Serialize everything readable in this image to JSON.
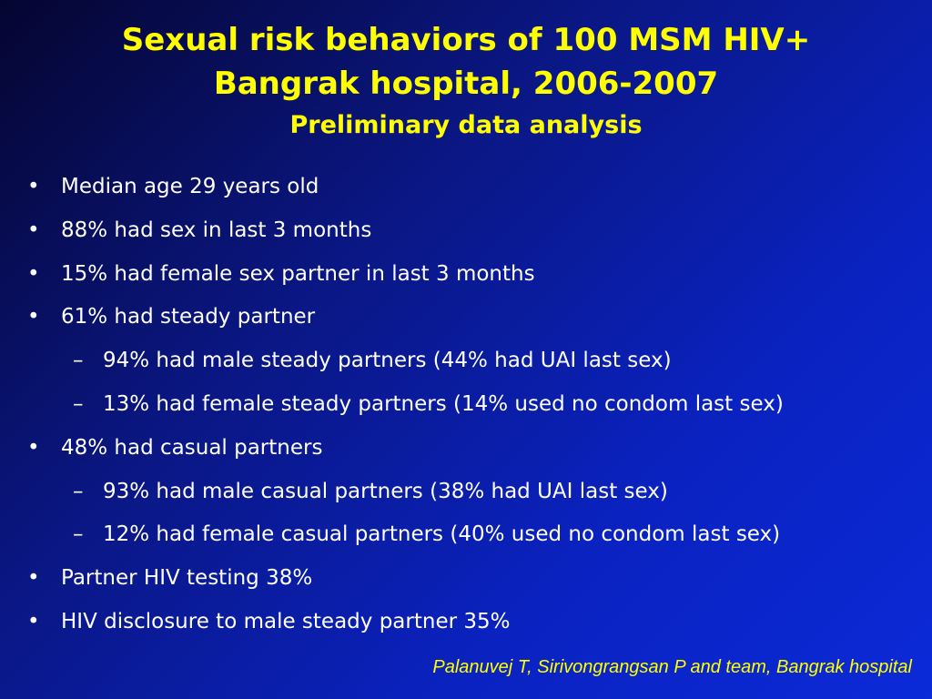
{
  "header": {
    "title": "Sexual risk behaviors of 100 MSM HIV+",
    "title_line2": "Bangrak hospital, 2006-2007",
    "subtitle": "Preliminary data analysis"
  },
  "bullets": [
    {
      "level": 1,
      "text": "Median age 29 years old"
    },
    {
      "level": 1,
      "text": "88% had sex in last 3 months"
    },
    {
      "level": 1,
      "text": "15% had female sex partner in last 3 months"
    },
    {
      "level": 1,
      "text": "61% had steady partner"
    },
    {
      "level": 2,
      "text": "94% had male steady partners (44% had UAI last sex)"
    },
    {
      "level": 2,
      "text": "13% had female steady partners (14% used no condom last sex)"
    },
    {
      "level": 1,
      "text": "48% had casual partners"
    },
    {
      "level": 2,
      "text": "93% had male casual partners (38% had UAI last sex)"
    },
    {
      "level": 2,
      "text": "12% had female casual partners (40% used no condom last sex)"
    },
    {
      "level": 1,
      "text": "Partner HIV testing 38%"
    },
    {
      "level": 1,
      "text": "HIV disclosure to male steady partner 35%"
    }
  ],
  "footer": {
    "credit": "Palanuvej T, Sirivongrangsan P and team, Bangrak hospital"
  }
}
